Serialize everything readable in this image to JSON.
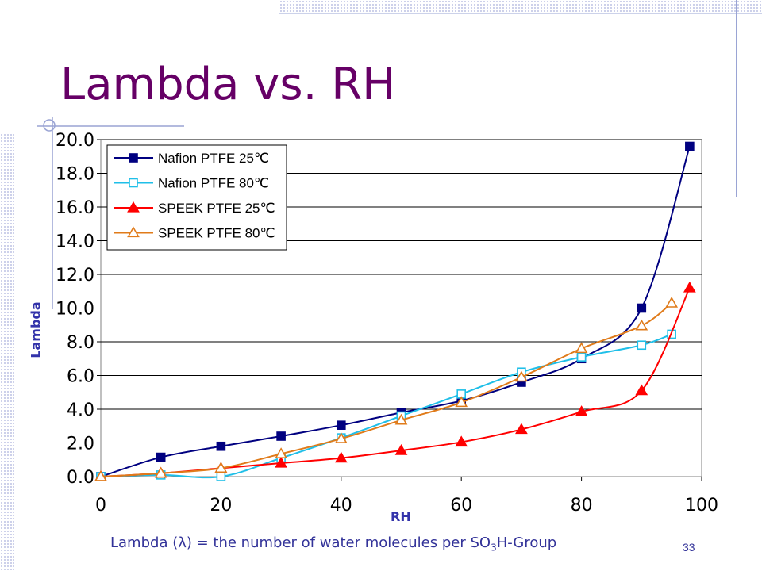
{
  "slide": {
    "title": "Lambda vs. RH",
    "footnote_pre": "Lambda (λ) = the number of water molecules per SO",
    "footnote_sub": "3",
    "footnote_post": "H-Group",
    "page_number": "33"
  },
  "chart_data": {
    "type": "line",
    "title": "",
    "xlabel": "RH",
    "ylabel": "Lambda",
    "xlim": [
      0,
      100
    ],
    "ylim": [
      0,
      20
    ],
    "xticks": [
      0,
      20,
      40,
      60,
      80,
      100
    ],
    "yticks": [
      0,
      2,
      4,
      6,
      8,
      10,
      12,
      14,
      16,
      18,
      20
    ],
    "x_tick_labels": [
      "0",
      "20",
      "40",
      "60",
      "80",
      "100"
    ],
    "y_tick_labels": [
      "0.0",
      "2.0",
      "4.0",
      "6.0",
      "8.0",
      "10.0",
      "12.0",
      "14.0",
      "16.0",
      "18.0",
      "20.0"
    ],
    "grid": "horizontal",
    "legend_position": "top-left",
    "series": [
      {
        "name": "Nafion PTFE 25℃",
        "color": "#000080",
        "marker": "filled-square",
        "x": [
          0,
          10,
          20,
          30,
          40,
          50,
          60,
          70,
          80,
          90,
          98
        ],
        "y": [
          0.0,
          1.15,
          1.8,
          2.4,
          3.05,
          3.8,
          4.5,
          5.6,
          7.0,
          10.0,
          19.6
        ]
      },
      {
        "name": "Nafion PTFE 80℃",
        "color": "#1fbfe8",
        "marker": "open-square",
        "x": [
          0,
          10,
          20,
          30,
          40,
          50,
          60,
          70,
          80,
          90,
          95
        ],
        "y": [
          0.0,
          0.1,
          0.0,
          1.1,
          2.3,
          3.6,
          4.9,
          6.2,
          7.1,
          7.8,
          8.45
        ]
      },
      {
        "name": "SPEEK PTFE 25℃",
        "color": "#ff0000",
        "marker": "filled-triangle",
        "x": [
          0,
          10,
          20,
          30,
          40,
          50,
          60,
          70,
          80,
          90,
          98
        ],
        "y": [
          0.0,
          0.2,
          0.5,
          0.8,
          1.1,
          1.55,
          2.05,
          2.8,
          3.85,
          5.1,
          11.2
        ]
      },
      {
        "name": "SPEEK PTFE 80℃",
        "color": "#e07b1a",
        "marker": "open-triangle",
        "x": [
          0,
          10,
          20,
          30,
          40,
          50,
          60,
          70,
          80,
          90,
          95
        ],
        "y": [
          0.0,
          0.2,
          0.5,
          1.35,
          2.25,
          3.35,
          4.4,
          5.9,
          7.6,
          8.95,
          10.3
        ]
      }
    ]
  }
}
